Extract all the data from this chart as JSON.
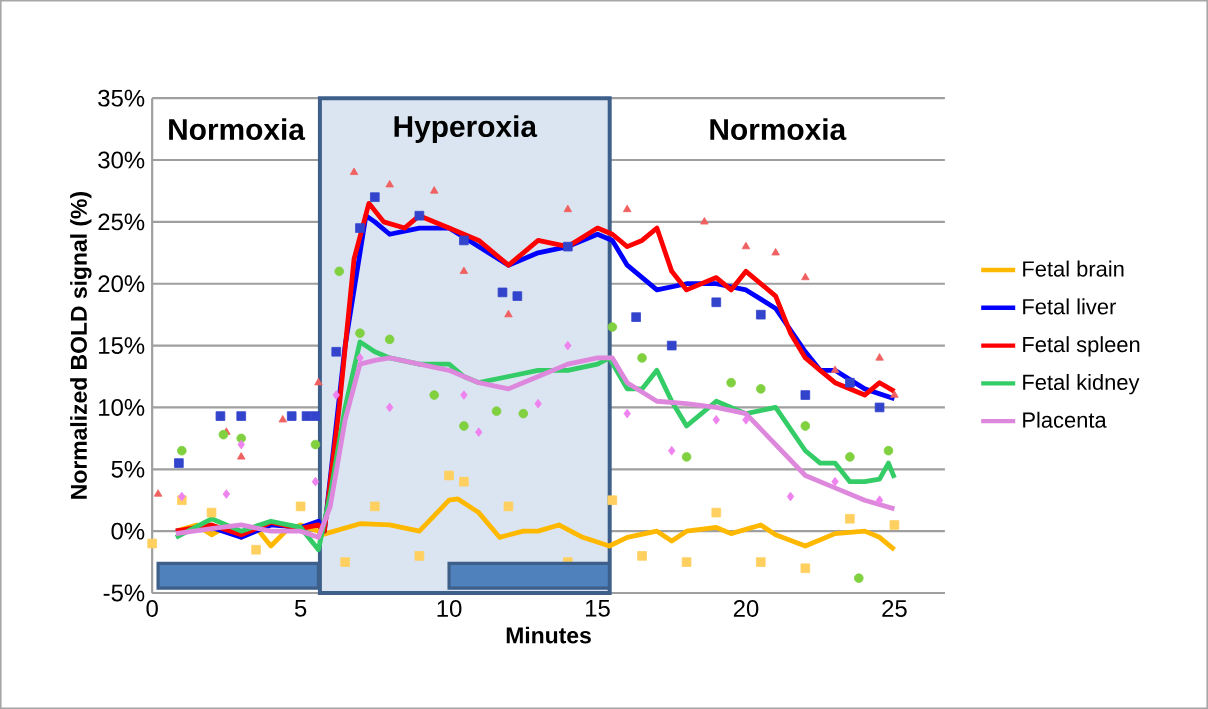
{
  "chart_data": {
    "type": "line",
    "xlabel": "Minutes",
    "ylabel": "Normalized BOLD signal (%)",
    "xlim": [
      0,
      26.7
    ],
    "xticks": [
      0,
      5,
      10,
      15,
      20,
      25
    ],
    "ylim": [
      -5,
      35
    ],
    "yticks": [
      {
        "value": -5,
        "label": "-5%"
      },
      {
        "value": 0,
        "label": "0%"
      },
      {
        "value": 5,
        "label": "5%"
      },
      {
        "value": 10,
        "label": "10%"
      },
      {
        "value": 15,
        "label": "15%"
      },
      {
        "value": 20,
        "label": "20%"
      },
      {
        "value": 25,
        "label": "25%"
      },
      {
        "value": 30,
        "label": "30%"
      },
      {
        "value": 35,
        "label": "35%"
      }
    ],
    "grid": "y",
    "legend": "right",
    "marker": "none",
    "line_style": "solid",
    "bands": [
      {
        "axis": "x",
        "from": 5.65,
        "to": 15.41,
        "label": "Hyperoxia",
        "color": "#dbe5f1"
      }
    ],
    "annotations": [
      "Normoxia",
      "Normoxia"
    ],
    "series": [
      {
        "type": "scatter",
        "color": "#ffd060",
        "marker": "square",
        "x": [
          0,
          1,
          2,
          3.5,
          5,
          6.5,
          7.5,
          9,
          10,
          10.5,
          12,
          14,
          15.5,
          16.5,
          18,
          19,
          20.5,
          22,
          23.5,
          25
        ],
        "values": [
          -1,
          2.5,
          1.5,
          -1.5,
          2,
          -2.5,
          2,
          -2,
          4.5,
          4,
          2,
          -2.5,
          2.5,
          -2,
          -2.5,
          1.5,
          -2.5,
          -3,
          1,
          0.5
        ]
      },
      {
        "type": "scatter",
        "color": "#3344cc",
        "marker": "square",
        "x": [
          0.9,
          2.3,
          3,
          4.7,
          5.2,
          5.5,
          6.2,
          7,
          7.5,
          9,
          10.5,
          11.8,
          12.3,
          14,
          16.3,
          17.5,
          19,
          20.5,
          22,
          23.5,
          24.5
        ],
        "values": [
          5.5,
          9.3,
          9.3,
          9.3,
          9.3,
          9.3,
          14.5,
          24.5,
          27,
          25.5,
          23.5,
          19.3,
          19,
          23,
          17.3,
          15,
          18.5,
          17.5,
          11,
          12,
          10
        ]
      },
      {
        "type": "scatter",
        "color": "#f06060",
        "marker": "triangle",
        "x": [
          0.2,
          2.5,
          3,
          4.4,
          5.6,
          6.8,
          8,
          9.5,
          10.5,
          12,
          14,
          16,
          18.6,
          20,
          21,
          22,
          23,
          24.5,
          25
        ],
        "values": [
          3,
          8,
          6,
          9,
          12,
          29,
          28,
          27.5,
          21,
          17.5,
          26,
          26,
          25,
          23,
          22.5,
          20.5,
          13,
          14,
          11
        ]
      },
      {
        "type": "scatter",
        "color": "#80d040",
        "marker": "circle",
        "x": [
          1,
          2.4,
          3,
          5.5,
          6.3,
          7,
          8,
          9.5,
          10.5,
          11.6,
          12.5,
          15.5,
          16.5,
          18,
          19.5,
          20.5,
          22,
          23.5,
          23.8,
          24.8
        ],
        "values": [
          6.5,
          7.8,
          7.5,
          7,
          21,
          16,
          15.5,
          11,
          8.5,
          9.7,
          9.5,
          16.5,
          14,
          6,
          12,
          11.5,
          8.5,
          6,
          -3.8,
          6.5
        ]
      },
      {
        "type": "scatter",
        "color": "#ee82ee",
        "marker": "diamond",
        "x": [
          1,
          2.5,
          3,
          5.5,
          6.2,
          7,
          8,
          10.5,
          11,
          13,
          14,
          16,
          17.5,
          19,
          20,
          21.5,
          23,
          24.5
        ],
        "values": [
          2.8,
          3,
          7,
          4,
          11,
          14,
          10,
          11,
          8,
          10.3,
          15,
          9.5,
          6.5,
          9,
          9,
          2.8,
          4,
          2.5
        ]
      },
      {
        "name": "Fetal brain",
        "color": "#ffb800",
        "x": [
          0.8,
          1.5,
          2,
          2.5,
          3,
          3.5,
          4,
          4.5,
          5,
          5.6,
          5.7,
          7,
          8,
          9,
          10,
          10.3,
          11,
          11.7,
          12.5,
          13,
          13.7,
          14.5,
          15.4,
          16,
          17,
          17.5,
          18,
          19,
          19.5,
          20.5,
          21,
          22,
          23,
          24,
          24.5,
          25
        ],
        "values": [
          0,
          0.5,
          -0.3,
          0.4,
          -0.5,
          0.3,
          -1.2,
          0,
          0.5,
          0,
          -0.3,
          0.6,
          0.5,
          0,
          2.5,
          2.6,
          1.5,
          -0.5,
          0,
          0,
          0.5,
          -0.5,
          -1.2,
          -0.5,
          0,
          -0.8,
          0,
          0.3,
          -0.2,
          0.5,
          -0.3,
          -1.2,
          -0.2,
          0,
          -0.5,
          -1.5
        ]
      },
      {
        "name": "Fetal liver",
        "color": "#0000ff",
        "x": [
          0.8,
          2,
          3,
          4,
          5,
          5.6,
          5.8,
          6.5,
          7.2,
          7.5,
          8,
          9,
          10,
          11,
          12,
          13,
          14,
          15,
          15.5,
          16,
          17,
          18,
          19,
          20,
          21,
          22,
          22.5,
          23,
          24,
          25
        ],
        "values": [
          0,
          0.3,
          -0.5,
          0.5,
          0.3,
          0.8,
          0,
          15,
          25.5,
          25,
          24,
          24.5,
          24.5,
          23,
          21.5,
          22.5,
          23,
          24,
          23.5,
          21.5,
          19.5,
          20,
          20,
          19.5,
          18,
          14.5,
          13,
          13,
          11.5,
          10.7
        ]
      },
      {
        "name": "Fetal spleen",
        "color": "#ff0000",
        "x": [
          0.8,
          2,
          3,
          4,
          5,
          5.6,
          5.8,
          6.3,
          6.8,
          7.3,
          7.8,
          8.5,
          9,
          10,
          11,
          12,
          12.5,
          13,
          14,
          15,
          15.5,
          16,
          16.5,
          17,
          17.5,
          18,
          19,
          19.5,
          20,
          21,
          21.5,
          22,
          22.5,
          23,
          23.5,
          24,
          24.5,
          25
        ],
        "values": [
          0,
          0.5,
          -0.3,
          0.7,
          0.2,
          0.5,
          0,
          10,
          22,
          26.5,
          25,
          24.5,
          25.5,
          24.5,
          23.5,
          21.5,
          22.5,
          23.5,
          23,
          24.5,
          24,
          23,
          23.5,
          24.5,
          21,
          19.5,
          20.5,
          19.5,
          21,
          19,
          16,
          14,
          13,
          12,
          11.5,
          11,
          12,
          11.3
        ]
      },
      {
        "name": "Fetal kidney",
        "color": "#33cc66",
        "x": [
          0.8,
          2,
          3,
          4,
          5,
          5.6,
          6,
          6.5,
          7,
          7.5,
          8,
          9,
          10,
          10.5,
          11,
          12,
          13,
          14,
          15,
          15.4,
          16,
          16.5,
          17,
          17.5,
          18,
          18.5,
          19,
          20,
          21,
          22,
          22.5,
          23,
          23.5,
          24,
          24.5,
          24.8,
          25
        ],
        "values": [
          -0.5,
          1,
          0,
          0.8,
          0.3,
          -1.5,
          3,
          10,
          15.3,
          14.5,
          14,
          13.5,
          13.5,
          12.5,
          12,
          12.5,
          13,
          13,
          13.5,
          14,
          11.5,
          11.5,
          13,
          10.5,
          8.5,
          9.5,
          10.5,
          9.5,
          10,
          6.5,
          5.5,
          5.5,
          4,
          4,
          4.2,
          5.5,
          4.3
        ]
      },
      {
        "name": "Placenta",
        "color": "#dd88dd",
        "x": [
          0.8,
          2,
          3,
          4,
          5,
          5.6,
          6,
          6.5,
          7,
          7.5,
          8,
          9,
          10,
          11,
          12,
          13,
          14,
          15,
          15.5,
          16,
          17,
          18,
          19,
          20,
          21,
          22,
          23,
          24,
          25
        ],
        "values": [
          -0.2,
          0.2,
          0.5,
          0,
          0,
          -0.5,
          2,
          9,
          13.5,
          13.8,
          14,
          13.5,
          13,
          12,
          11.5,
          12.5,
          13.5,
          14,
          14,
          12,
          10.5,
          10.3,
          10,
          9.5,
          7,
          4.5,
          3.5,
          2.5,
          1.8
        ]
      }
    ]
  }
}
